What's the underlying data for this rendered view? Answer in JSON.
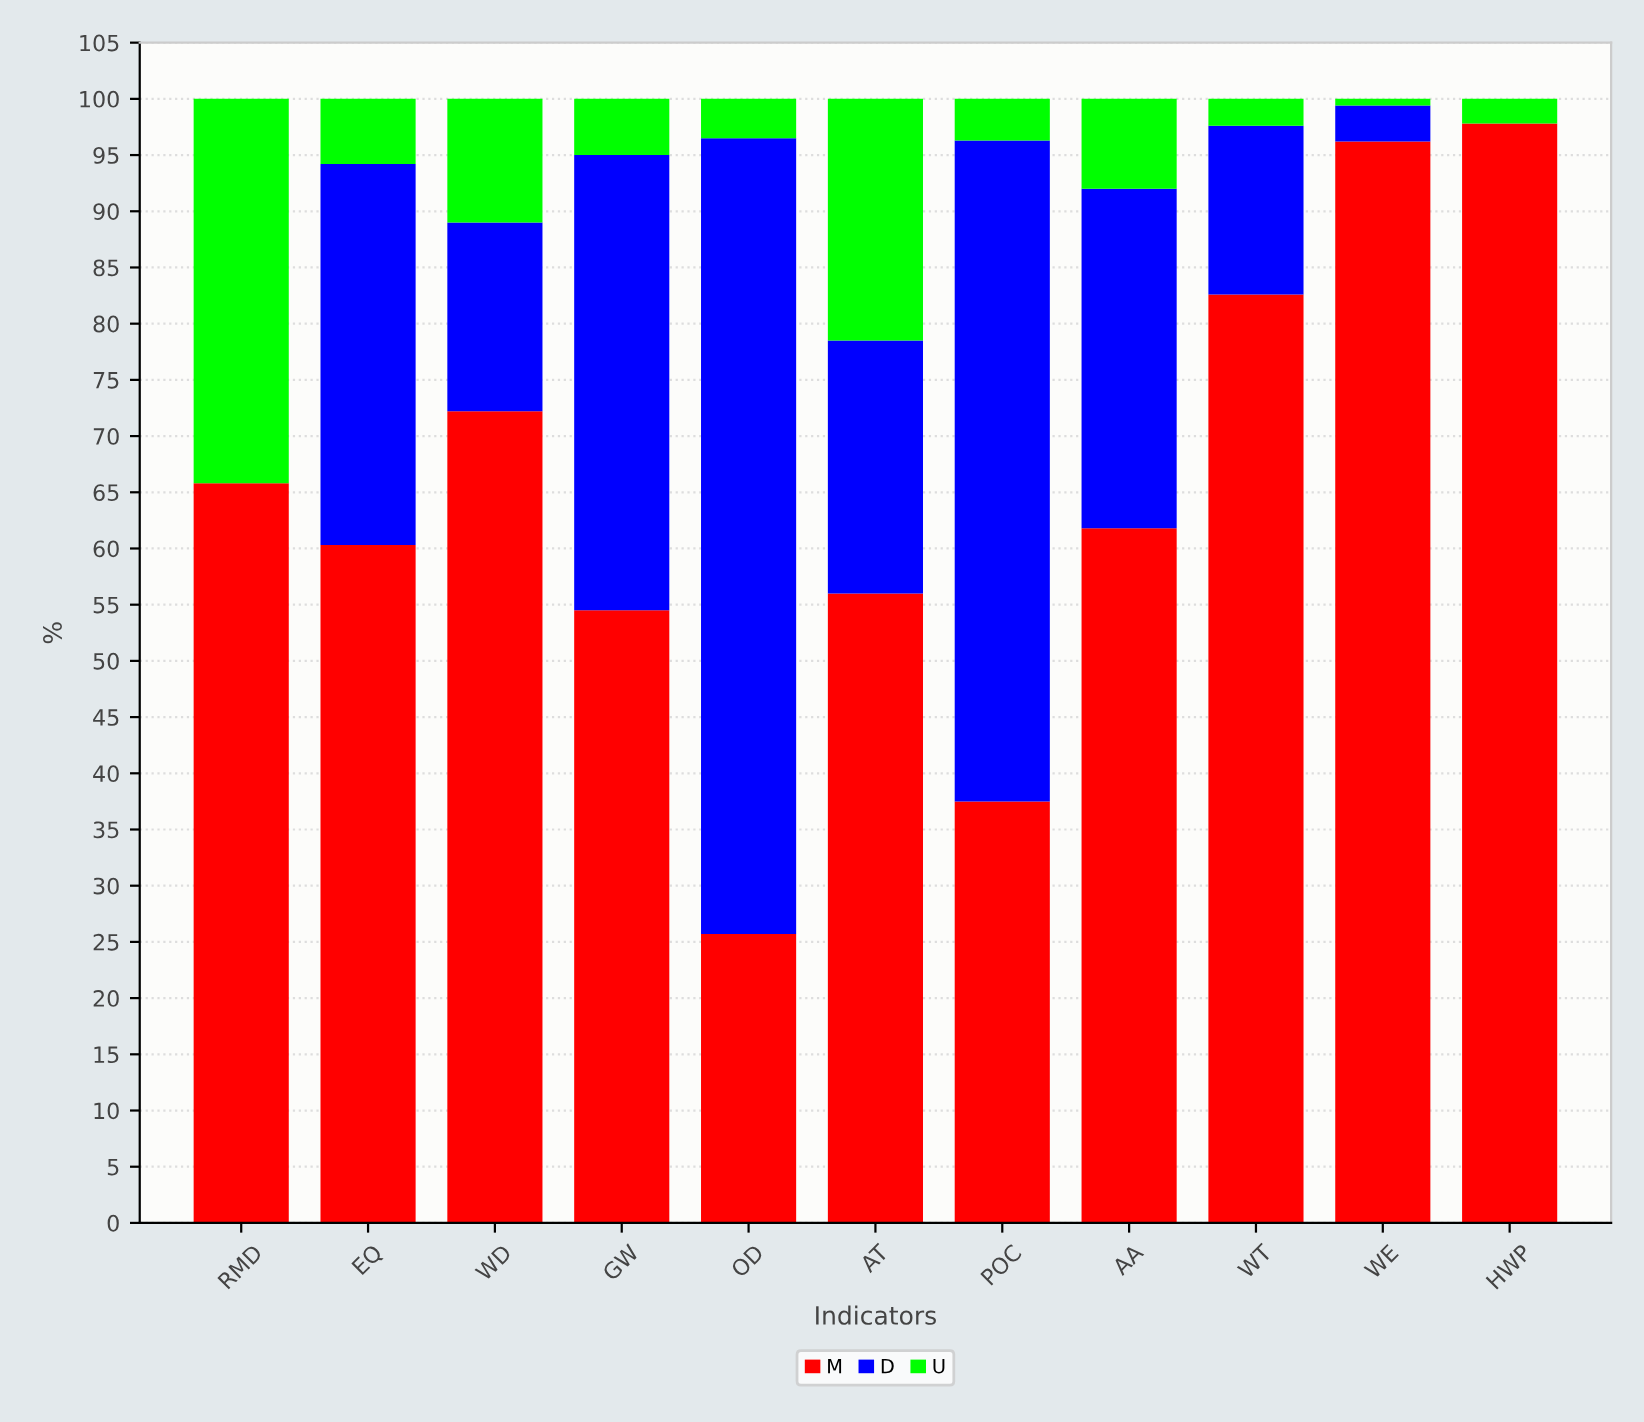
{
  "chart_data": {
    "type": "bar",
    "stacked": true,
    "xlabel": "Indicators",
    "ylabel": "%",
    "categories": [
      "RMD",
      "EQ",
      "WD",
      "GW",
      "OD",
      "AT",
      "POC",
      "AA",
      "WT",
      "WE",
      "HWP"
    ],
    "series": [
      {
        "name": "M",
        "color": "#ff0000",
        "values": [
          65.8,
          60.3,
          72.2,
          54.5,
          25.7,
          56,
          37.5,
          61.8,
          82.6,
          96.2,
          97.8
        ]
      },
      {
        "name": "D",
        "color": "#0000ff",
        "values": [
          0,
          33.9,
          16.8,
          40.5,
          70.8,
          22.5,
          58.8,
          30.2,
          15,
          3.2,
          0
        ]
      },
      {
        "name": "U",
        "color": "#00ff00",
        "values": [
          34.2,
          5.8,
          11,
          5,
          3.5,
          21.5,
          3.7,
          8,
          2.4,
          0.6,
          2.2
        ]
      }
    ],
    "ylim": [
      0,
      105
    ],
    "yticks": [
      0,
      5,
      10,
      15,
      20,
      25,
      30,
      35,
      40,
      45,
      50,
      55,
      60,
      65,
      70,
      75,
      80,
      85,
      90,
      95,
      100,
      105
    ],
    "grid": "y",
    "legend": "bottom"
  }
}
